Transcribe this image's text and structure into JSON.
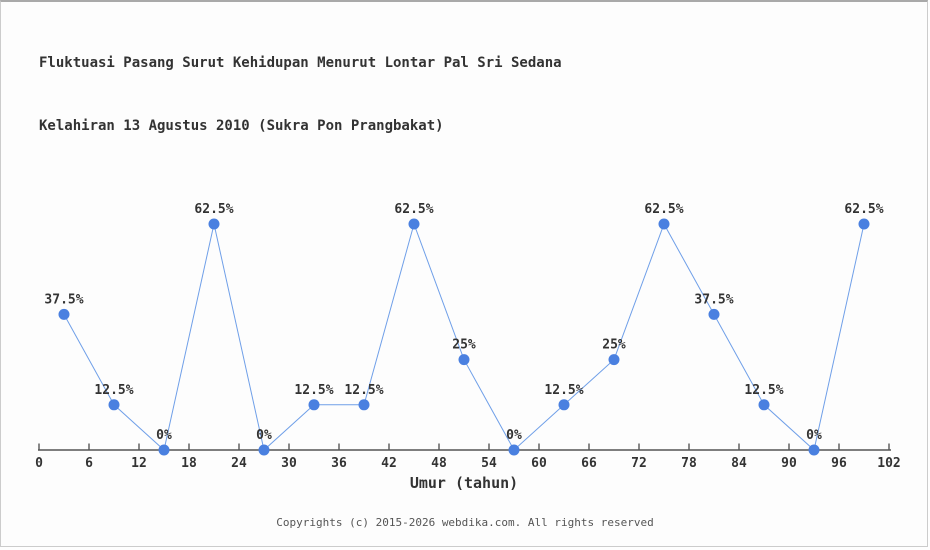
{
  "header": {
    "title_line1": "Fluktuasi Pasang Surut Kehidupan Menurut Lontar Pal Sri Sedana",
    "title_line2": "Kelahiran 13 Agustus 2010 (Sukra Pon Prangbakat)"
  },
  "footer": {
    "text": "Copyrights (c) 2015-2026 webdika.com. All rights reserved"
  },
  "chart_data": {
    "type": "line",
    "title": "Fluktuasi Pasang Surut Kehidupan Menurut Lontar Pal Sri Sedana Kelahiran 13 Agustus 2010 (Sukra Pon Prangbakat)",
    "x": [
      3,
      9,
      15,
      21,
      27,
      33,
      39,
      45,
      51,
      57,
      63,
      69,
      75,
      81,
      87,
      93,
      99
    ],
    "values": [
      37.5,
      12.5,
      0,
      62.5,
      0,
      12.5,
      12.5,
      62.5,
      25,
      0,
      12.5,
      25,
      62.5,
      37.5,
      12.5,
      0,
      62.5
    ],
    "point_labels": [
      "37.5%",
      "12.5%",
      "0%",
      "62.5%",
      "0%",
      "12.5%",
      "12.5%",
      "62.5%",
      "25%",
      "0%",
      "12.5%",
      "25%",
      "62.5%",
      "37.5%",
      "12.5%",
      "0%",
      "62.5%"
    ],
    "xlabel": "Umur (tahun)",
    "ylabel": "",
    "x_ticks": [
      0,
      6,
      12,
      18,
      24,
      30,
      36,
      42,
      48,
      54,
      60,
      66,
      72,
      78,
      84,
      90,
      96,
      102
    ],
    "xlim": [
      0,
      102
    ],
    "ylim": [
      0,
      70
    ],
    "grid": false,
    "legend": "none",
    "marker": "circle",
    "colors": {
      "line": "#6f9fe8",
      "marker": "#4a80e0",
      "axis": "#555555",
      "tick_label": "#333333",
      "point_label": "#333333"
    }
  }
}
